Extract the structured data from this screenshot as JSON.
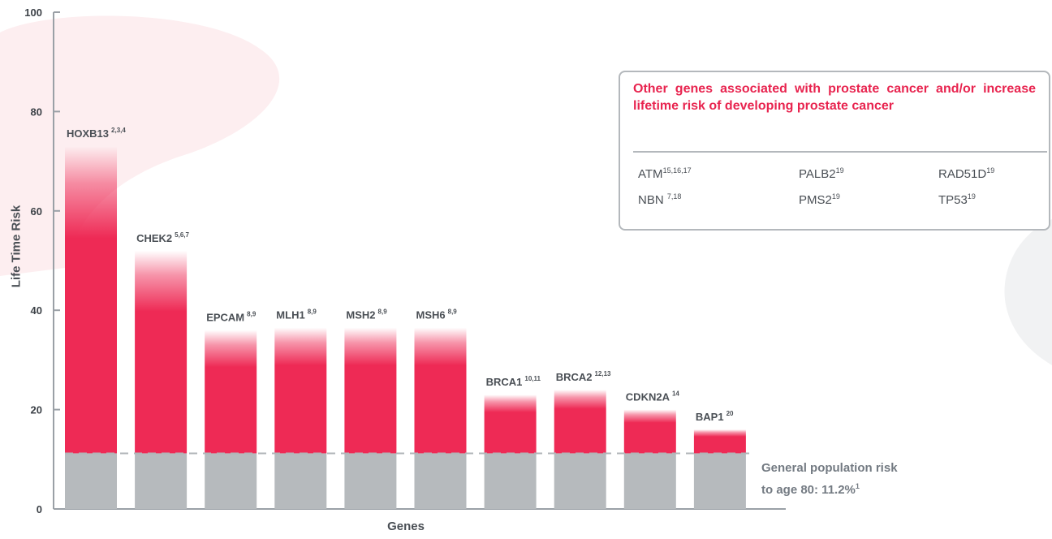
{
  "chart_data": {
    "type": "bar",
    "ylabel": "Life Time Risk",
    "xlabel": "Genes",
    "ylim": [
      0,
      100
    ],
    "yticks": [
      0,
      20,
      40,
      60,
      80,
      100
    ],
    "baseline": {
      "value": 11.2,
      "label": "General population risk to age 80: 11.2%",
      "label_line1": "General population risk",
      "label_line2": "to age 80: 11.2%",
      "label_ref": "1"
    },
    "categories": [
      {
        "name": "HOXB13",
        "refs": "2,3,4",
        "value": 73
      },
      {
        "name": "CHEK2",
        "refs": "5,6,7",
        "value": 52
      },
      {
        "name": "EPCAM",
        "refs": "8,9",
        "value": 36
      },
      {
        "name": "MLH1",
        "refs": "8,9",
        "value": 36.5
      },
      {
        "name": "MSH2",
        "refs": "8,9",
        "value": 36.5
      },
      {
        "name": "MSH6",
        "refs": "8,9",
        "value": 36.5
      },
      {
        "name": "BRCA1",
        "refs": "10,11",
        "value": 23
      },
      {
        "name": "BRCA2",
        "refs": "12,13",
        "value": 24
      },
      {
        "name": "CDKN2A",
        "refs": "14",
        "value": 20
      },
      {
        "name": "BAP1",
        "refs": "20",
        "value": 16
      }
    ],
    "colors": {
      "risk": "#ee2a55",
      "population": "#b6babd",
      "axis": "#9aa0a6",
      "text": "#4a4f55"
    }
  },
  "other_genes": {
    "title": "Other genes associated with prostate cancer and/or increase lifetime risk of developing prostate cancer",
    "items": [
      {
        "name": "ATM",
        "refs": "15,16,17"
      },
      {
        "name": "PALB2",
        "refs": "19"
      },
      {
        "name": "RAD51D",
        "refs": "19"
      },
      {
        "name": "NBN ",
        "refs": "7,18"
      },
      {
        "name": "PMS2",
        "refs": "19"
      },
      {
        "name": "TP53",
        "refs": "19"
      }
    ]
  }
}
